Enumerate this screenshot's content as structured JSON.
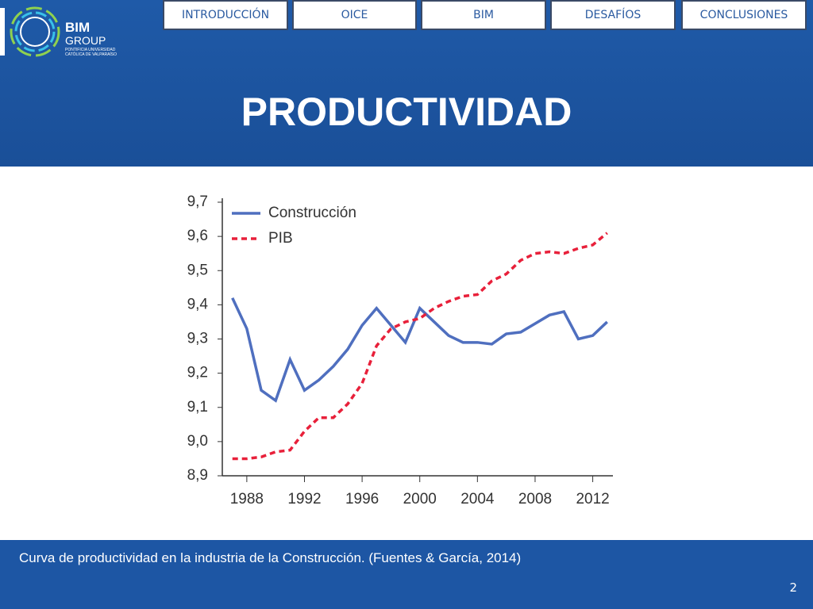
{
  "nav": [
    "INTRODUCCIÓN",
    "OICE",
    "BIM",
    "DESAFÍOS",
    "CONCLUSIONES"
  ],
  "logo": {
    "name": "BIM",
    "group": "GROUP",
    "line1": "PONTIFICIA UNIVERSIDAD",
    "line2": "CATÓLICA DE VALPARAÍSO"
  },
  "title": "PRODUCTIVIDAD",
  "caption": "Curva de productividad en la industria de la Construcción. (Fuentes & García, 2014)",
  "page_number": "2",
  "chart_data": {
    "type": "line",
    "x": [
      1987,
      1988,
      1989,
      1990,
      1991,
      1992,
      1993,
      1994,
      1995,
      1996,
      1997,
      1998,
      1999,
      2000,
      2001,
      2002,
      2003,
      2004,
      2005,
      2006,
      2007,
      2008,
      2009,
      2010,
      2011,
      2012,
      2013
    ],
    "series": [
      {
        "name": "Construcción",
        "color": "#4f6fbf",
        "dash": false,
        "values": [
          9.42,
          9.33,
          9.15,
          9.12,
          9.24,
          9.15,
          9.18,
          9.22,
          9.27,
          9.34,
          9.39,
          9.34,
          9.29,
          9.39,
          9.35,
          9.31,
          9.29,
          9.29,
          9.285,
          9.315,
          9.32,
          9.345,
          9.37,
          9.38,
          9.3,
          9.31,
          9.35
        ]
      },
      {
        "name": "PIB",
        "color": "#e8203a",
        "dash": true,
        "values": [
          8.95,
          8.95,
          8.955,
          8.97,
          8.975,
          9.03,
          9.07,
          9.07,
          9.11,
          9.17,
          9.28,
          9.33,
          9.35,
          9.36,
          9.39,
          9.41,
          9.425,
          9.43,
          9.47,
          9.49,
          9.53,
          9.55,
          9.555,
          9.55,
          9.565,
          9.575,
          9.61
        ]
      }
    ],
    "xlim": [
      1986.3,
      2013.4
    ],
    "xticks": [
      1988,
      1992,
      1996,
      2000,
      2004,
      2008,
      2012
    ],
    "ylim": [
      8.9,
      9.7
    ],
    "yticks": [
      {
        "value": 8.9,
        "label": "8,9"
      },
      {
        "value": 9.0,
        "label": "9,0"
      },
      {
        "value": 9.1,
        "label": "9,1"
      },
      {
        "value": 9.2,
        "label": "9,2"
      },
      {
        "value": 9.3,
        "label": "9,3"
      },
      {
        "value": 9.4,
        "label": "9,4"
      },
      {
        "value": 9.5,
        "label": "9,5"
      },
      {
        "value": 9.6,
        "label": "9,6"
      },
      {
        "value": 9.7,
        "label": "9,7"
      }
    ],
    "legend": "top-left"
  }
}
